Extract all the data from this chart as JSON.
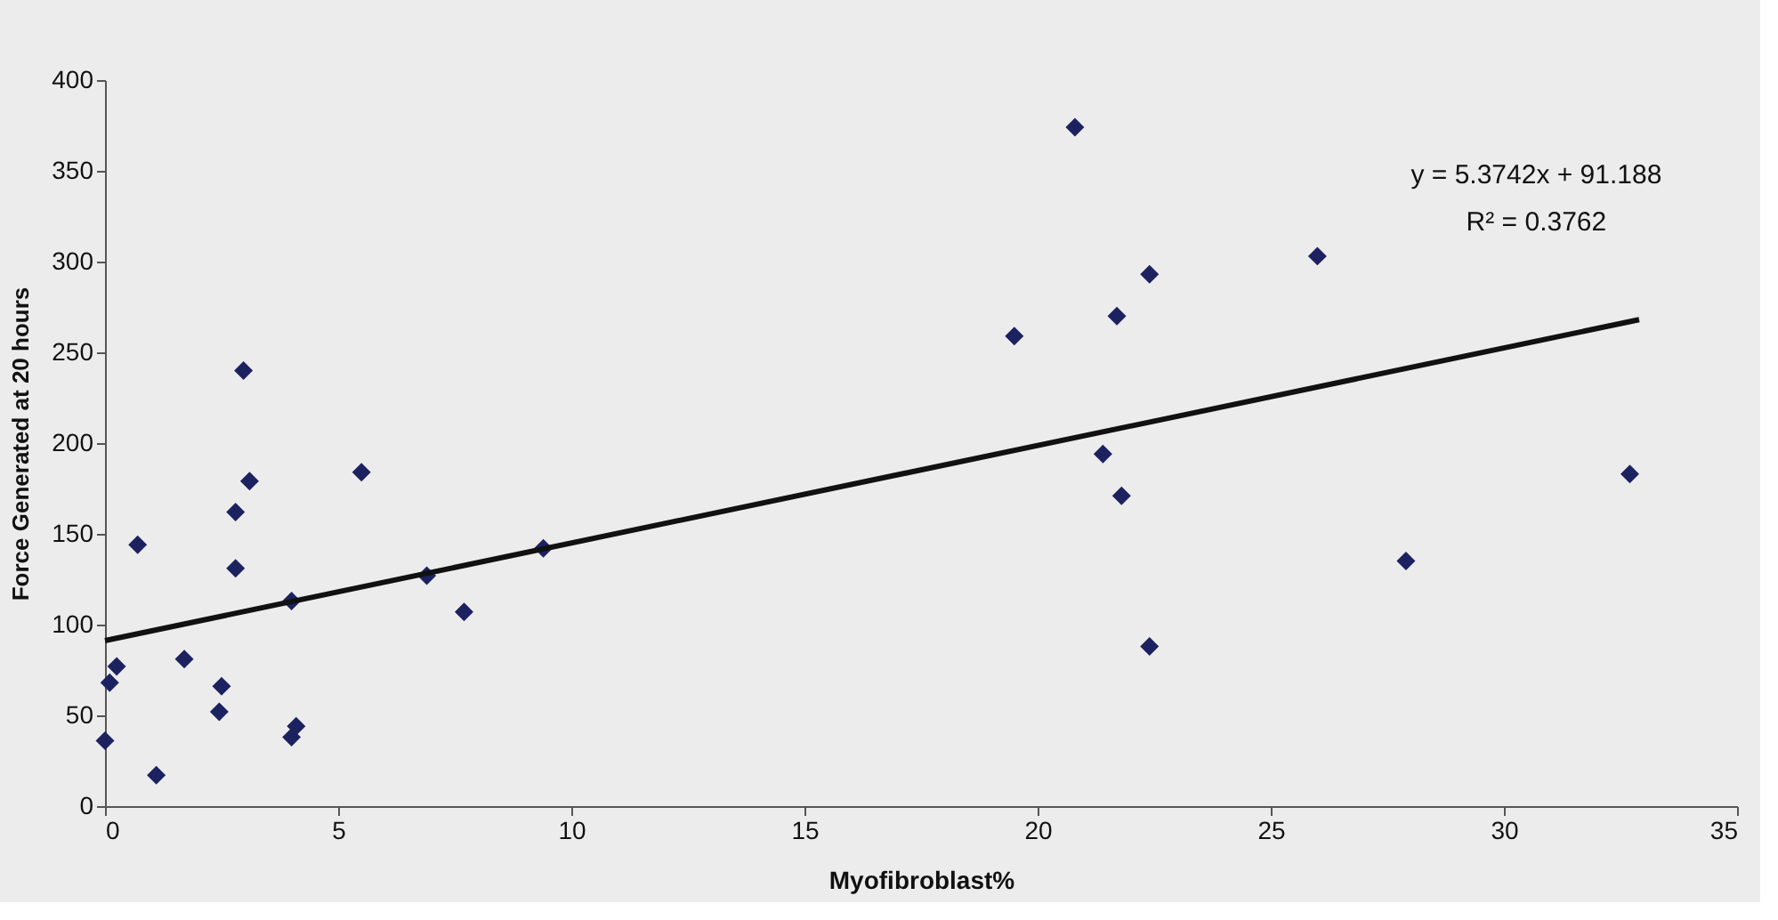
{
  "chart_data": {
    "type": "scatter",
    "xlabel": "Myofibroblast%",
    "ylabel": "Force Generated at 20 hours",
    "xlim": [
      0,
      35
    ],
    "xticks": [
      0,
      5,
      10,
      15,
      20,
      25,
      30,
      35
    ],
    "ylim": [
      0,
      400
    ],
    "yticks": [
      0,
      50,
      100,
      150,
      200,
      250,
      300,
      350,
      400
    ],
    "grid": false,
    "marker": "diamond",
    "annotations": [
      "y = 5.3742x + 91.188",
      "R² = 0.3762"
    ],
    "series": [
      {
        "color": "#1c2260",
        "x": [
          0,
          0.1,
          0.25,
          0.7,
          1.1,
          1.7,
          2.45,
          2.5,
          2.8,
          2.8,
          2.97,
          3.1,
          4.0,
          4.0,
          4.1,
          5.5,
          6.9,
          7.7,
          9.4,
          20.8,
          19.5,
          21.7,
          22.4,
          26.0,
          21.4,
          21.8,
          27.9,
          32.7,
          22.4
        ],
        "values": [
          36,
          68,
          77,
          144,
          17,
          81,
          52,
          66,
          131,
          162,
          240,
          179,
          113,
          38,
          44,
          184,
          127,
          107,
          142,
          374,
          259,
          270,
          293,
          303,
          194,
          171,
          135,
          183,
          88
        ]
      },
      {
        "type": "line",
        "color": "#111111",
        "line_style": "solid",
        "marker": "none",
        "x": [
          0,
          32.9
        ],
        "values": [
          91.2,
          268
        ]
      }
    ]
  }
}
